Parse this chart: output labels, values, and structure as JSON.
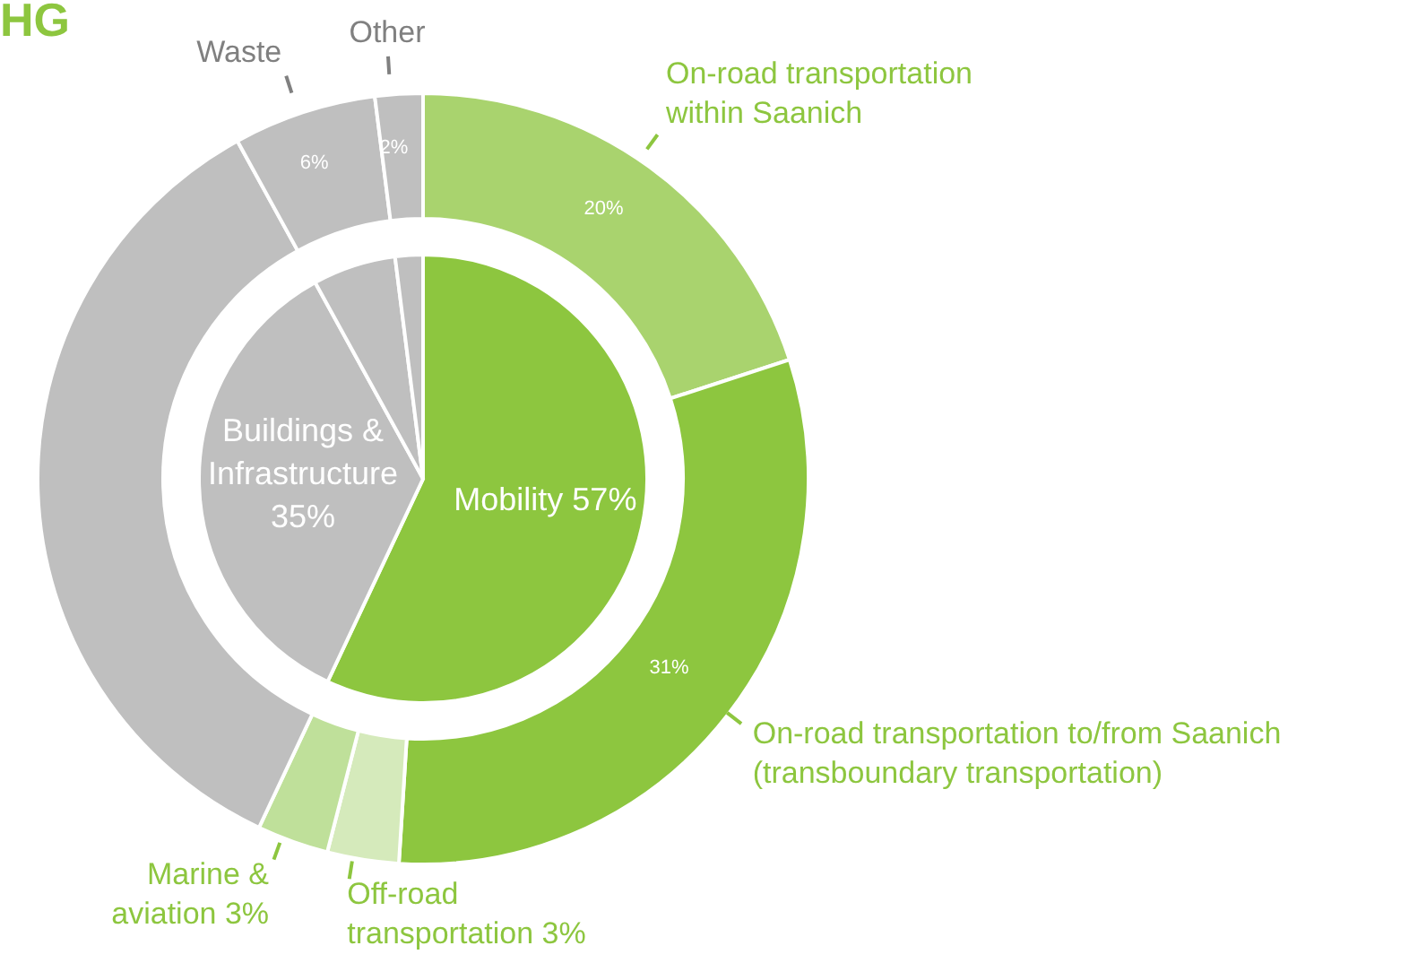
{
  "chart_data": [
    {
      "type": "pie",
      "title": "HG",
      "categories": [
        "Mobility 57%",
        "Buildings & Infrastructure 35%",
        null,
        null
      ],
      "values": [
        57,
        35,
        6,
        2
      ],
      "colors": [
        "#8dc63f",
        "#bfbfbf",
        "#bfbfbf",
        "#bfbfbf"
      ]
    },
    {
      "type": "donut",
      "categories": [
        "On-road transportation within Saanich",
        "On-road transportation to/from Saanich (transboundary transportation)",
        "Off-road transportation 3%",
        "Marine & aviation 3%",
        null,
        "Waste",
        "Other"
      ],
      "values": [
        20,
        31,
        3,
        3,
        35,
        6,
        2
      ],
      "colors": [
        "#a9d36e",
        "#8dc63f",
        "#d5eabb",
        "#bfe09a",
        "#bfbfbf",
        "#bfbfbf",
        "#bfbfbf"
      ],
      "value_labels": [
        "20%",
        "31%",
        null,
        null,
        null,
        "6%",
        "2%"
      ]
    }
  ]
}
